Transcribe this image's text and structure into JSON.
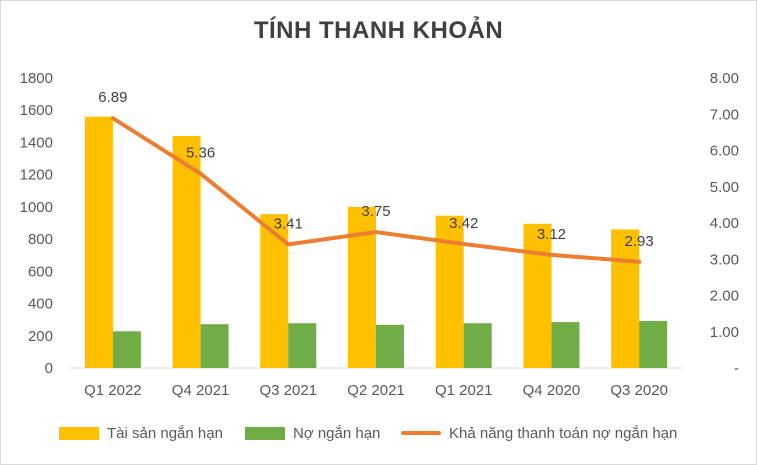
{
  "chart_data": {
    "type": "bar+line",
    "title": "TÍNH THANH KHOẢN",
    "categories": [
      "Q1 2022",
      "Q4 2021",
      "Q3 2021",
      "Q2 2021",
      "Q1 2021",
      "Q4 2020",
      "Q3 2020"
    ],
    "series": [
      {
        "name": "Tài sản ngắn hạn",
        "type": "bar",
        "axis": "left",
        "color": "#FFC000",
        "values": [
          1560,
          1440,
          955,
          1000,
          945,
          895,
          860
        ]
      },
      {
        "name": "Nợ ngắn hạn",
        "type": "bar",
        "axis": "left",
        "color": "#70AD47",
        "values": [
          228,
          272,
          278,
          268,
          278,
          285,
          292
        ]
      }
    ],
    "line_series": {
      "name": "Khả năng thanh toán nợ ngắn hạn",
      "type": "line",
      "axis": "right",
      "color": "#ED7D31",
      "values": [
        6.89,
        5.36,
        3.41,
        3.75,
        3.42,
        3.12,
        2.93
      ],
      "labels": [
        "6.89",
        "5.36",
        "3.41",
        "3.75",
        "3.42",
        "3.12",
        "2.93"
      ]
    },
    "left_axis": {
      "ylim": [
        0,
        1800
      ],
      "ticks": [
        "0",
        "200",
        "400",
        "600",
        "800",
        "1000",
        "1200",
        "1400",
        "1600",
        "1800"
      ]
    },
    "right_axis": {
      "ylim": [
        0,
        8
      ],
      "ticks": [
        "-",
        "1.00",
        "2.00",
        "3.00",
        "4.00",
        "5.00",
        "6.00",
        "7.00",
        "8.00"
      ]
    },
    "grid": false,
    "legend_position": "bottom"
  }
}
